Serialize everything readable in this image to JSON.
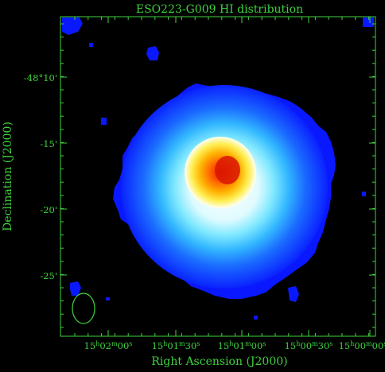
{
  "chart_data": {
    "type": "heatmap",
    "title": "ESO223-G009   HI distribution",
    "xlabel": "Right Ascension (J2000)",
    "ylabel": "Declination (J2000)",
    "x_ticks": [
      "15h02m00s",
      "15h01m30s",
      "15h01m00s",
      "15h00m30s",
      "15h00m00s"
    ],
    "y_ticks": [
      "-48°10'",
      "-15'",
      "-20'",
      "-25'"
    ],
    "colors": {
      "frame": "#3fd23f",
      "background": "#000000",
      "colormap": [
        "#0a16ff",
        "#1c6cff",
        "#3cc8ff",
        "#ffffff",
        "#ffe640",
        "#ff8c00",
        "#e82000"
      ]
    },
    "beam": "ellipse, lower-left",
    "peak": "red core near center"
  },
  "ui": {
    "tick_x": [
      "15",
      "02",
      "00",
      "15",
      "01",
      "30",
      "15",
      "01",
      "00",
      "15",
      "00",
      "30",
      "15",
      "00",
      "00"
    ]
  }
}
